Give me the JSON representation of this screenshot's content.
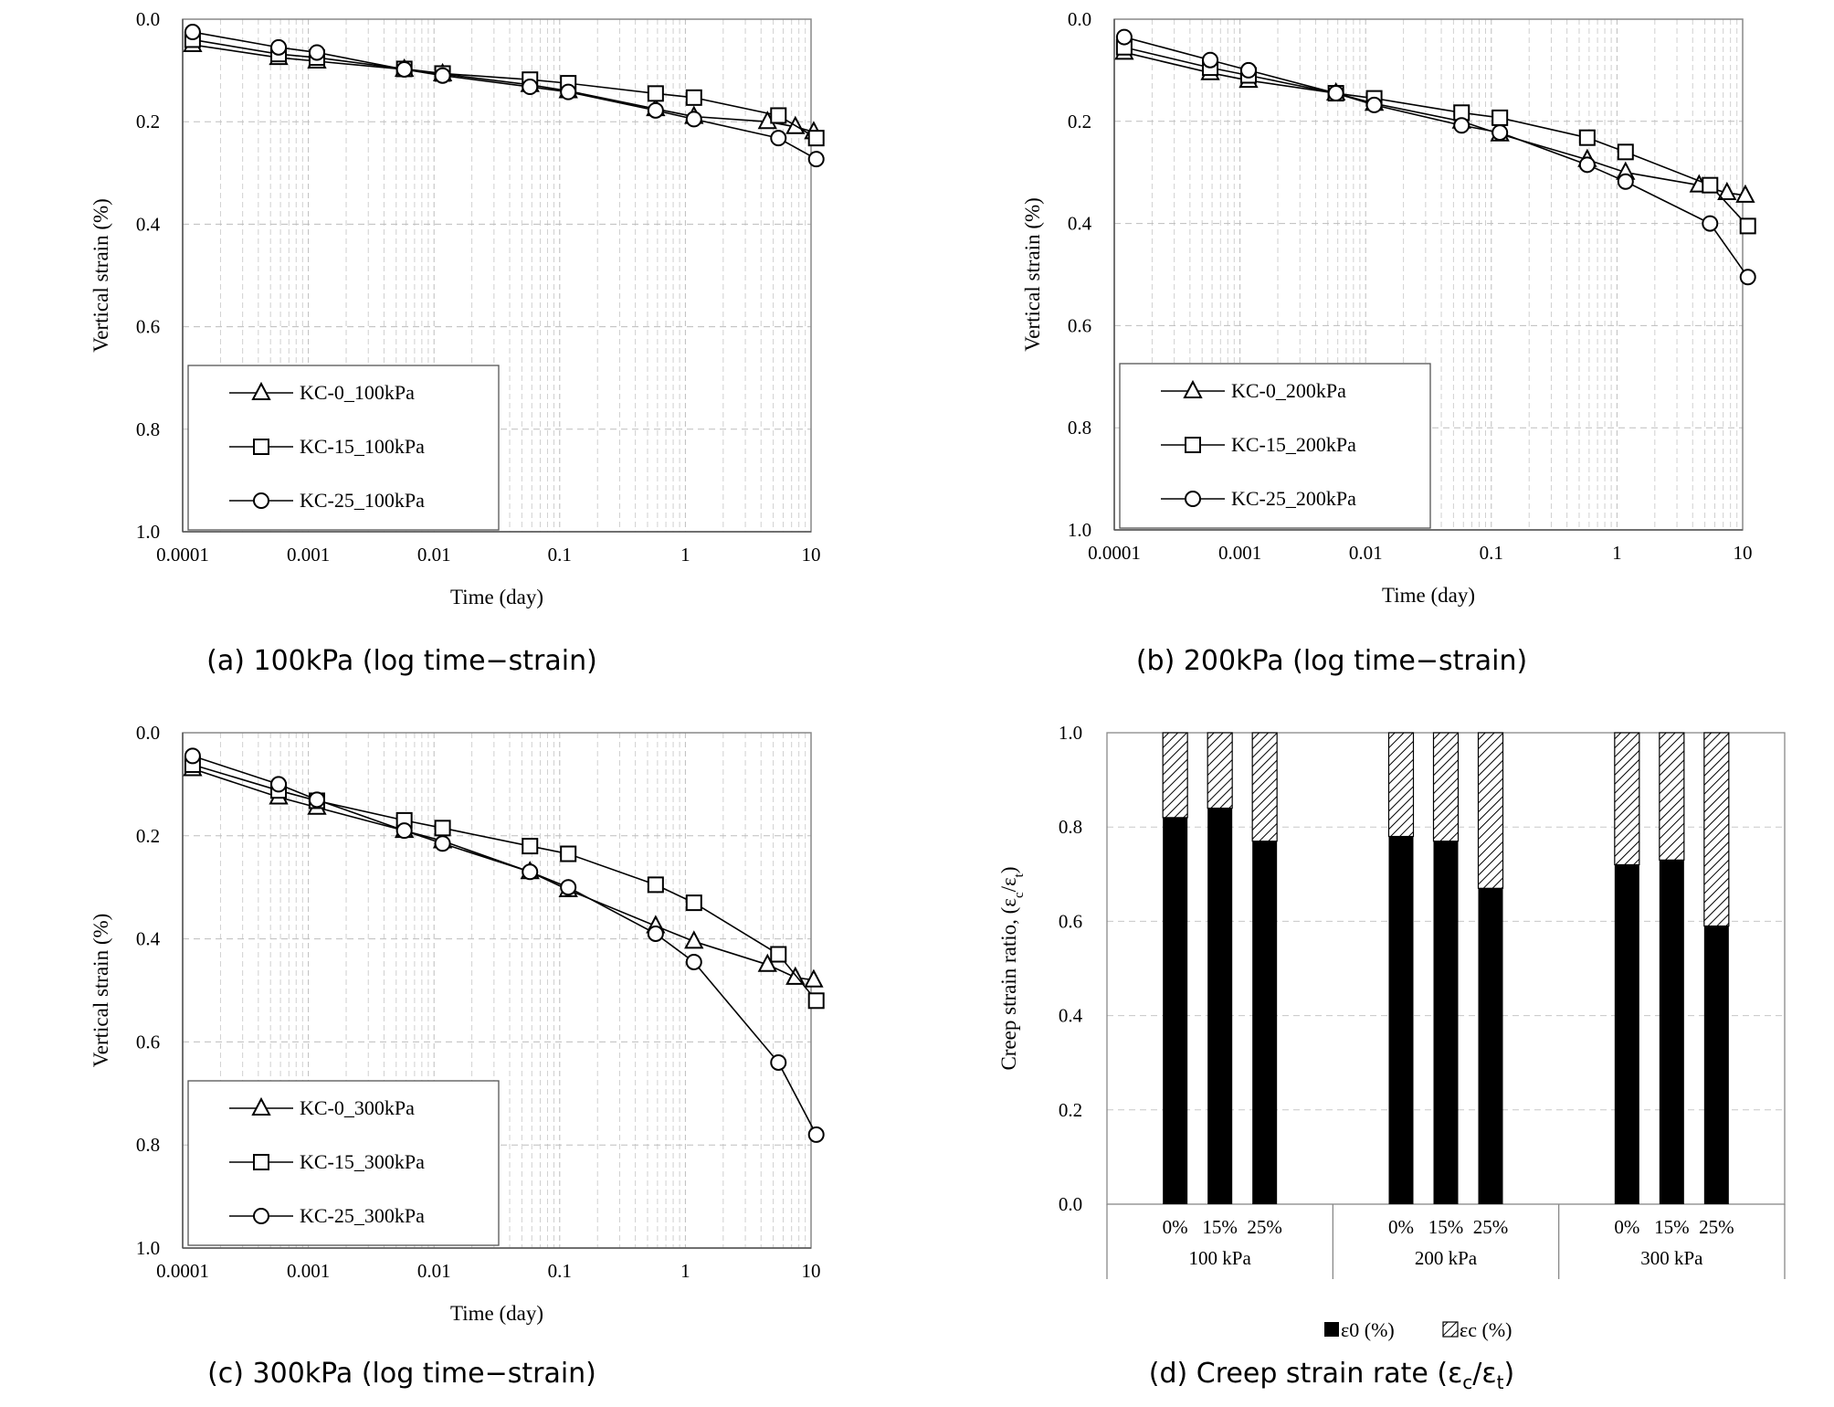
{
  "chart_data": [
    {
      "id": "a",
      "type": "scatter",
      "xscale": "log",
      "xlabel": "Time (day)",
      "ylabel": "Vertical strain (%)",
      "xlim": [
        0.0001,
        10
      ],
      "ylim": [
        0.0,
        1.0
      ],
      "yreversed": true,
      "x_ticks": [
        "0.0001",
        "0.001",
        "0.01",
        "0.1",
        "1",
        "10"
      ],
      "y_ticks": [
        "0.0",
        "0.2",
        "0.4",
        "0.6",
        "0.8",
        "1.0"
      ],
      "grid": "vertical log minor dashed, horizontal dashed",
      "legend_position": "bottom-left",
      "series": [
        {
          "name": "KC-0_100kPa",
          "marker": "triangle",
          "x": [
            0.00012,
            0.00058,
            0.00117,
            0.0058,
            0.0117,
            0.058,
            0.117,
            0.58,
            1.17,
            4.5,
            7.5,
            10.5
          ],
          "y": [
            0.05,
            0.075,
            0.082,
            0.098,
            0.107,
            0.128,
            0.14,
            0.175,
            0.19,
            0.2,
            0.21,
            0.22
          ]
        },
        {
          "name": "KC-15_100kPa",
          "marker": "square",
          "x": [
            0.00012,
            0.00058,
            0.00117,
            0.0058,
            0.0117,
            0.058,
            0.117,
            0.58,
            1.17,
            5.5,
            11
          ],
          "y": [
            0.04,
            0.068,
            0.075,
            0.097,
            0.106,
            0.118,
            0.125,
            0.145,
            0.153,
            0.188,
            0.232
          ]
        },
        {
          "name": "KC-25_100kPa",
          "marker": "circle",
          "x": [
            0.00012,
            0.00058,
            0.00117,
            0.0058,
            0.0117,
            0.058,
            0.117,
            0.58,
            1.17,
            5.5,
            11
          ],
          "y": [
            0.025,
            0.055,
            0.065,
            0.098,
            0.11,
            0.132,
            0.142,
            0.178,
            0.195,
            0.232,
            0.273
          ]
        }
      ]
    },
    {
      "id": "b",
      "type": "scatter",
      "xscale": "log",
      "xlabel": "Time (day)",
      "ylabel": "Vertical strain (%)",
      "xlim": [
        0.0001,
        10
      ],
      "ylim": [
        0.0,
        1.0
      ],
      "yreversed": true,
      "x_ticks": [
        "0.0001",
        "0.001",
        "0.01",
        "0.1",
        "1",
        "10"
      ],
      "y_ticks": [
        "0.0",
        "0.2",
        "0.4",
        "0.6",
        "0.8",
        "1.0"
      ],
      "grid": "vertical log minor dashed, horizontal dashed",
      "legend_position": "bottom-left",
      "series": [
        {
          "name": "KC-0_200kPa",
          "marker": "triangle",
          "x": [
            0.00012,
            0.00058,
            0.00117,
            0.0058,
            0.0117,
            0.058,
            0.117,
            0.58,
            1.17,
            4.5,
            7.5,
            10.5
          ],
          "y": [
            0.065,
            0.105,
            0.12,
            0.145,
            0.165,
            0.2,
            0.225,
            0.275,
            0.3,
            0.325,
            0.34,
            0.345
          ]
        },
        {
          "name": "KC-15_200kPa",
          "marker": "square",
          "x": [
            0.00012,
            0.00058,
            0.00117,
            0.0058,
            0.0117,
            0.058,
            0.117,
            0.58,
            1.17,
            5.5,
            11
          ],
          "y": [
            0.055,
            0.095,
            0.11,
            0.145,
            0.155,
            0.183,
            0.193,
            0.232,
            0.26,
            0.325,
            0.405
          ]
        },
        {
          "name": "KC-25_200kPa",
          "marker": "circle",
          "x": [
            0.00012,
            0.00058,
            0.00117,
            0.0058,
            0.0117,
            0.058,
            0.117,
            0.58,
            1.17,
            5.5,
            11
          ],
          "y": [
            0.035,
            0.08,
            0.1,
            0.145,
            0.168,
            0.208,
            0.222,
            0.285,
            0.318,
            0.4,
            0.505
          ]
        }
      ]
    },
    {
      "id": "c",
      "type": "scatter",
      "xscale": "log",
      "xlabel": "Time (day)",
      "ylabel": "Vertical strain (%)",
      "xlim": [
        0.0001,
        10
      ],
      "ylim": [
        0.0,
        1.0
      ],
      "yreversed": true,
      "x_ticks": [
        "0.0001",
        "0.001",
        "0.01",
        "0.1",
        "1",
        "10"
      ],
      "y_ticks": [
        "0.0",
        "0.2",
        "0.4",
        "0.6",
        "0.8",
        "1.0"
      ],
      "grid": "vertical log minor dashed, horizontal dashed",
      "legend_position": "bottom-left",
      "series": [
        {
          "name": "KC-0_300kPa",
          "marker": "triangle",
          "x": [
            0.00012,
            0.00058,
            0.00117,
            0.0058,
            0.0117,
            0.058,
            0.117,
            0.58,
            1.17,
            4.5,
            7.5,
            10.5
          ],
          "y": [
            0.07,
            0.125,
            0.145,
            0.19,
            0.21,
            0.27,
            0.305,
            0.375,
            0.405,
            0.45,
            0.475,
            0.48
          ]
        },
        {
          "name": "KC-15_300kPa",
          "marker": "square",
          "x": [
            0.00012,
            0.00058,
            0.00117,
            0.0058,
            0.0117,
            0.058,
            0.117,
            0.58,
            1.17,
            5.5,
            11
          ],
          "y": [
            0.062,
            0.112,
            0.132,
            0.17,
            0.185,
            0.22,
            0.235,
            0.295,
            0.33,
            0.43,
            0.52
          ]
        },
        {
          "name": "KC-25_300kPa",
          "marker": "circle",
          "x": [
            0.00012,
            0.00058,
            0.00117,
            0.0058,
            0.0117,
            0.058,
            0.117,
            0.58,
            1.17,
            5.5,
            11
          ],
          "y": [
            0.045,
            0.1,
            0.13,
            0.19,
            0.215,
            0.27,
            0.3,
            0.39,
            0.445,
            0.64,
            0.78
          ]
        }
      ]
    },
    {
      "id": "d",
      "type": "bar",
      "stacked": true,
      "ylabel_html": "Creep strain ratio, (ε<tspan baseline-shift=\"sub\" font-size=\"15\">c</tspan>/ε<tspan baseline-shift=\"sub\" font-size=\"15\">t</tspan>)",
      "ylim": [
        0.0,
        1.0
      ],
      "y_ticks": [
        "0.0",
        "0.2",
        "0.4",
        "0.6",
        "0.8",
        "1.0"
      ],
      "grid": "horizontal dashed",
      "groups": [
        "100 kPa",
        "200 kPa",
        "300 kPa"
      ],
      "categories": [
        "0%",
        "15%",
        "25%"
      ],
      "series": [
        {
          "name": "ε0 (%)",
          "fill": "solid-black",
          "values": [
            [
              0.82,
              0.84,
              0.77
            ],
            [
              0.78,
              0.77,
              0.67
            ],
            [
              0.72,
              0.73,
              0.59
            ]
          ]
        },
        {
          "name": "εc (%)",
          "fill": "hatched",
          "values": [
            [
              0.18,
              0.16,
              0.23
            ],
            [
              0.22,
              0.23,
              0.33
            ],
            [
              0.28,
              0.27,
              0.41
            ]
          ]
        }
      ],
      "legend_position": "bottom-center"
    }
  ],
  "captions": {
    "a": "(a) 100kPa (log time−strain)",
    "b": "(b) 200kPa (log time−strain)",
    "c": "(c) 300kPa (log time−strain)",
    "d_prefix": "(d) Creep strain rate (ε",
    "d_sub1": "c",
    "d_mid": "/ε",
    "d_sub2": "t",
    "d_suffix": ")"
  }
}
